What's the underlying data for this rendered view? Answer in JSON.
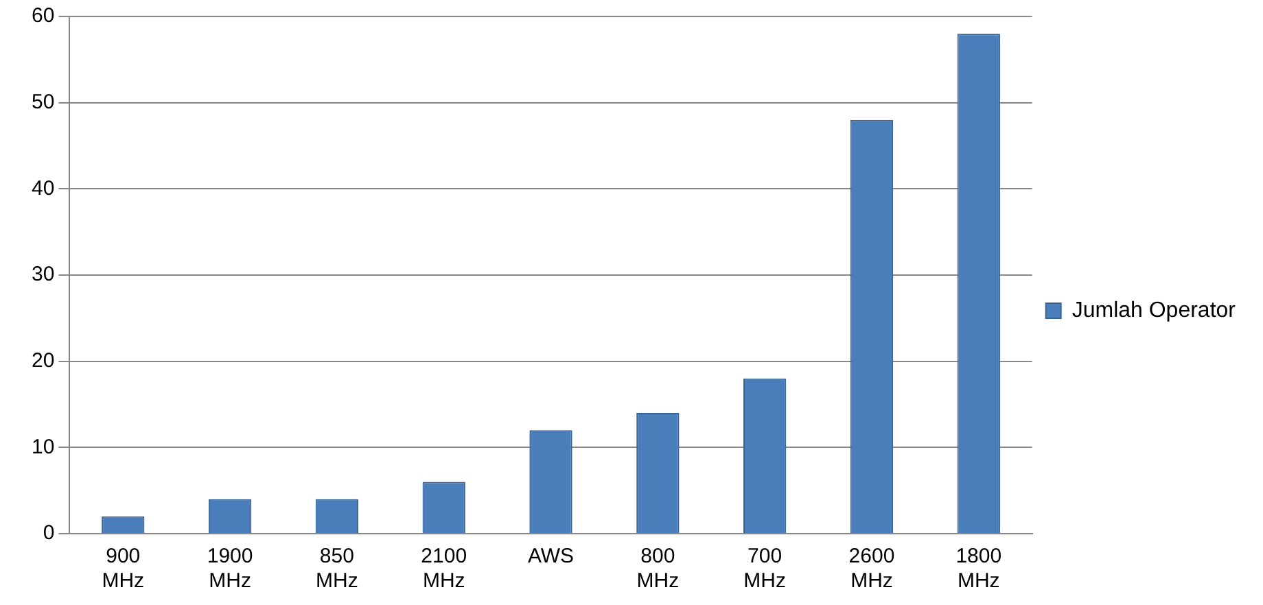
{
  "chart_data": {
    "type": "bar",
    "categories": [
      "900 MHz",
      "1900 MHz",
      "850 MHz",
      "2100 MHz",
      "AWS",
      "800 MHz",
      "700 MHz",
      "2600 MHz",
      "1800 MHz"
    ],
    "series": [
      {
        "name": "Jumlah Operator",
        "color": "#4a7ebb",
        "values": [
          2,
          4,
          4,
          6,
          12,
          14,
          18,
          48,
          58
        ]
      }
    ],
    "ylim": [
      0,
      60
    ],
    "yticks": [
      0,
      10,
      20,
      30,
      40,
      50,
      60
    ],
    "grid": "y",
    "legend": "right"
  }
}
